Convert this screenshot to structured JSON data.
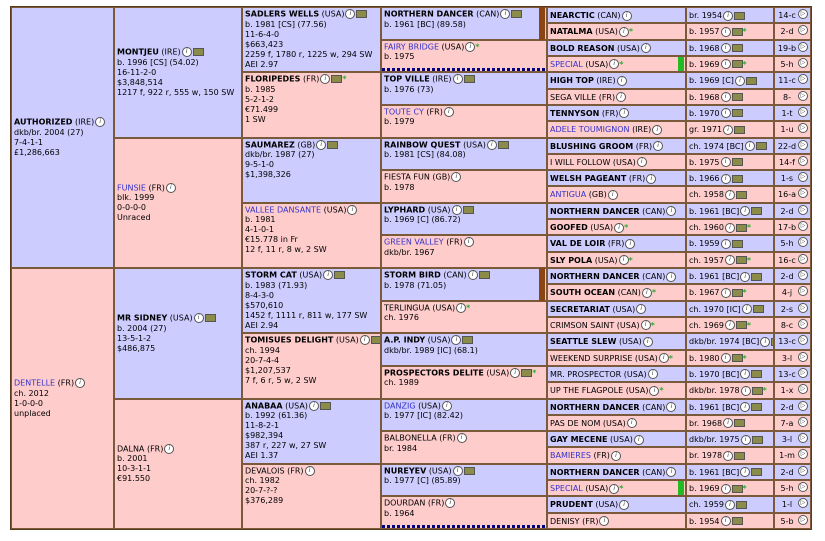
{
  "gen1": [
    {
      "name": "AUTHORIZED",
      "origin": "(IRE)",
      "link": false,
      "line1": "dkb/br. 2004 (27)",
      "line2": "7-4-1-1",
      "line3": "£1,286,663"
    },
    {
      "name": "DENTELLE",
      "origin": "(FR)",
      "link": true,
      "line1": "ch. 2012",
      "line2": "1-0-0-0",
      "line3": "unplaced"
    }
  ],
  "gen2": [
    {
      "name": "MONTJEU",
      "origin": "(IRE)",
      "link": false,
      "lines": [
        "b. 1996 [CS] (54.02)",
        "16-11-2-0",
        "$3,848,514",
        "1217 f, 922 r, 555 w, 150 SW"
      ]
    },
    {
      "name": "FUNSIE",
      "origin": "(FR)",
      "link": true,
      "lines": [
        "blk. 1999",
        "0-0-0-0",
        "Unraced"
      ]
    },
    {
      "name": "MR SIDNEY",
      "origin": "(USA)",
      "link": false,
      "lines": [
        "b. 2004 (27)",
        "13-5-1-2",
        "$486,875"
      ]
    },
    {
      "name": "DALNA",
      "origin": "(FR)",
      "link": false,
      "normal": true,
      "lines": [
        "b. 2001",
        "10-3-1-1",
        "€91.550"
      ]
    }
  ],
  "gen3": [
    {
      "name": "SADLERS WELLS",
      "origin": "(USA)",
      "link": false,
      "lines": [
        "b. 1981 [CS] (77.56)",
        "11-6-4-0",
        "$663,423",
        "2259 f, 1780 r, 1225 w, 294 SW",
        "AEI 2.97"
      ]
    },
    {
      "name": "FLORIPEDES",
      "origin": "(FR)",
      "link": false,
      "star": true,
      "lines": [
        "b. 1985",
        "5-2-1-2",
        "€71.499",
        "1 SW"
      ]
    },
    {
      "name": "SAUMAREZ",
      "origin": "(GB)",
      "link": false,
      "lines": [
        "dkb/br. 1987 (27)",
        "9-5-1-0",
        "$1,398,326"
      ]
    },
    {
      "name": "VALLEE DANSANTE",
      "origin": "(USA)",
      "link": true,
      "lines": [
        "b. 1981",
        "4-1-0-1",
        "€15.778 in Fr",
        "12 f, 11 r, 8 w, 2 SW"
      ]
    },
    {
      "name": "STORM CAT",
      "origin": "(USA)",
      "link": false,
      "lines": [
        "b. 1983 (71.93)",
        "8-4-3-0",
        "$570,610",
        "1452 f, 1111 r, 811 w, 177 SW",
        "AEI 2.94"
      ]
    },
    {
      "name": "TOMISUES DELIGHT",
      "origin": "(USA)",
      "link": false,
      "lines": [
        "ch. 1994",
        "20-7-4-4",
        "$1,207,537",
        "7 f, 6 r, 5 w, 2 SW"
      ]
    },
    {
      "name": "ANABAA",
      "origin": "(USA)",
      "link": false,
      "lines": [
        "b. 1992 (61.36)",
        "11-8-2-1",
        "$982,394",
        "387 r, 227 w, 27 SW",
        "AEI 1.37"
      ]
    },
    {
      "name": "DEVALOIS",
      "origin": "(FR)",
      "link": false,
      "normal": true,
      "lines": [
        "ch. 1982",
        "20-7-?-?",
        "$376,289"
      ]
    }
  ],
  "gen4": [
    {
      "name": "NORTHERN DANCER",
      "origin": "(CAN)",
      "link": false,
      "line": "b. 1961 [BC] (89.58)"
    },
    {
      "name": "FAIRY BRIDGE",
      "origin": "(USA)",
      "link": true,
      "star": true,
      "line": "b. 1975"
    },
    {
      "name": "TOP VILLE",
      "origin": "(IRE)",
      "link": false,
      "line": "b. 1976 (73)"
    },
    {
      "name": "TOUTE CY",
      "origin": "(FR)",
      "link": true,
      "line": "b. 1979"
    },
    {
      "name": "RAINBOW QUEST",
      "origin": "(USA)",
      "link": false,
      "line": "b. 1981 [CS] (84.08)"
    },
    {
      "name": "FIESTA FUN",
      "origin": "(GB)",
      "link": false,
      "normal": true,
      "line": "b. 1978"
    },
    {
      "name": "LYPHARD",
      "origin": "(USA)",
      "link": false,
      "line": "b. 1969 [C] (86.72)"
    },
    {
      "name": "GREEN VALLEY",
      "origin": "(FR)",
      "link": true,
      "line": "dkb/br. 1967"
    },
    {
      "name": "STORM BIRD",
      "origin": "(CAN)",
      "link": false,
      "line": "b. 1978 (71.05)"
    },
    {
      "name": "TERLINGUA",
      "origin": "(USA)",
      "link": false,
      "normal": true,
      "star": true,
      "line": "ch. 1976"
    },
    {
      "name": "A.P. INDY",
      "origin": "(USA)",
      "link": false,
      "line": "dkb/br. 1989 [IC] (68.1)"
    },
    {
      "name": "PROSPECTORS DELITE",
      "origin": "(USA)",
      "link": false,
      "star": true,
      "line": "ch. 1989"
    },
    {
      "name": "DANZIG",
      "origin": "(USA)",
      "link": true,
      "line": "b. 1977 [IC] (82.42)"
    },
    {
      "name": "BALBONELLA",
      "origin": "(FR)",
      "link": false,
      "normal": true,
      "line": "br. 1984"
    },
    {
      "name": "NUREYEV",
      "origin": "(USA)",
      "link": false,
      "line": "b. 1977 [C] (85.89)"
    },
    {
      "name": "DOURDAN",
      "origin": "(FR)",
      "link": false,
      "normal": true,
      "line": "b. 1964"
    }
  ],
  "gen5": [
    {
      "name": "NEARCTIC",
      "origin": "(CAN)",
      "year": "br. 1954",
      "sx": "14-c"
    },
    {
      "name": "NATALMA",
      "origin": "(USA)",
      "year": "b. 1957",
      "sx": "2-d",
      "star": true
    },
    {
      "name": "BOLD REASON",
      "origin": "(USA)",
      "year": "b. 1968",
      "sx": "19-b"
    },
    {
      "name": "SPECIAL",
      "origin": "(USA)",
      "year": "b. 1969",
      "sx": "5-h",
      "link": true,
      "star": true
    },
    {
      "name": "HIGH TOP",
      "origin": "(IRE)",
      "year": "b. 1969 [C]",
      "sx": "11-c"
    },
    {
      "name": "SEGA VILLE",
      "origin": "(FR)",
      "year": "b. 1968",
      "sx": "8-",
      "normal": true
    },
    {
      "name": "TENNYSON",
      "origin": "(FR)",
      "year": "b. 1970",
      "sx": "1-t"
    },
    {
      "name": "ADELE TOUMIGNON",
      "origin": "(IRE)",
      "year": "gr. 1971",
      "sx": "1-u",
      "link": true
    },
    {
      "name": "BLUSHING GROOM",
      "origin": "(FR)",
      "year": "ch. 1974 [BC]",
      "sx": "22-d"
    },
    {
      "name": "I WILL FOLLOW",
      "origin": "(USA)",
      "year": "b. 1975",
      "sx": "14-f",
      "normal": true
    },
    {
      "name": "WELSH PAGEANT",
      "origin": "(FR)",
      "year": "b. 1966",
      "sx": "1-s"
    },
    {
      "name": "ANTIGUA",
      "origin": "(GB)",
      "year": "ch. 1958",
      "sx": "16-a",
      "link": true
    },
    {
      "name": "NORTHERN DANCER",
      "origin": "(CAN)",
      "year": "b. 1961 [BC]",
      "sx": "2-d"
    },
    {
      "name": "GOOFED",
      "origin": "(USA)",
      "year": "ch. 1960",
      "sx": "17-b",
      "star": true
    },
    {
      "name": "VAL DE LOIR",
      "origin": "(FR)",
      "year": "b. 1959",
      "sx": "5-h"
    },
    {
      "name": "SLY POLA",
      "origin": "(USA)",
      "year": "ch. 1957",
      "sx": "16-c",
      "star": true
    },
    {
      "name": "NORTHERN DANCER",
      "origin": "(CAN)",
      "year": "b. 1961 [BC]",
      "sx": "2-d"
    },
    {
      "name": "SOUTH OCEAN",
      "origin": "(CAN)",
      "year": "b. 1967",
      "sx": "4-j",
      "star": true
    },
    {
      "name": "SECRETARIAT",
      "origin": "(USA)",
      "year": "ch. 1970 [IC]",
      "sx": "2-s"
    },
    {
      "name": "CRIMSON SAINT",
      "origin": "(USA)",
      "year": "ch. 1969",
      "sx": "8-c",
      "normal": true,
      "star": true
    },
    {
      "name": "SEATTLE SLEW",
      "origin": "(USA)",
      "year": "dkb/br. 1974 [BC]",
      "sx": "13-c"
    },
    {
      "name": "WEEKEND SURPRISE",
      "origin": "(USA)",
      "year": "b. 1980",
      "sx": "3-l",
      "normal": true,
      "star": true
    },
    {
      "name": "MR. PROSPECTOR",
      "origin": "(USA)",
      "year": "b. 1970 [BC]",
      "sx": "13-c",
      "normal": true
    },
    {
      "name": "UP THE FLAGPOLE",
      "origin": "(USA)",
      "year": "dkb/br. 1978",
      "sx": "1-x",
      "normal": true,
      "star": true
    },
    {
      "name": "NORTHERN DANCER",
      "origin": "(CAN)",
      "year": "b. 1961 [BC]",
      "sx": "2-d"
    },
    {
      "name": "PAS DE NOM",
      "origin": "(USA)",
      "year": "br. 1968",
      "sx": "7-a",
      "normal": true
    },
    {
      "name": "GAY MECENE",
      "origin": "(USA)",
      "year": "dkb/br. 1975",
      "sx": "3-l"
    },
    {
      "name": "BAMIERES",
      "origin": "(FR)",
      "year": "br. 1978",
      "sx": "1-m",
      "link": true
    },
    {
      "name": "NORTHERN DANCER",
      "origin": "(CAN)",
      "year": "b. 1961 [BC]",
      "sx": "2-d"
    },
    {
      "name": "SPECIAL",
      "origin": "(USA)",
      "year": "b. 1969",
      "sx": "5-h",
      "link": true,
      "star": true
    },
    {
      "name": "PRUDENT",
      "origin": "(USA)",
      "year": "ch. 1959",
      "sx": "1-l"
    },
    {
      "name": "DENISY",
      "origin": "(FR)",
      "year": "b. 1954",
      "sx": "5-b",
      "normal": true
    }
  ],
  "colors": {
    "male": "#ccccff",
    "female": "#ffcccc",
    "border": "#7a5a3a",
    "link": "#3333cc",
    "bar_brown": "#8b4513",
    "bar_green": "#22bb22",
    "star": "#33aa33"
  },
  "icons": {
    "info": "info-icon",
    "photo": "photo-icon",
    "star": "star-icon"
  }
}
